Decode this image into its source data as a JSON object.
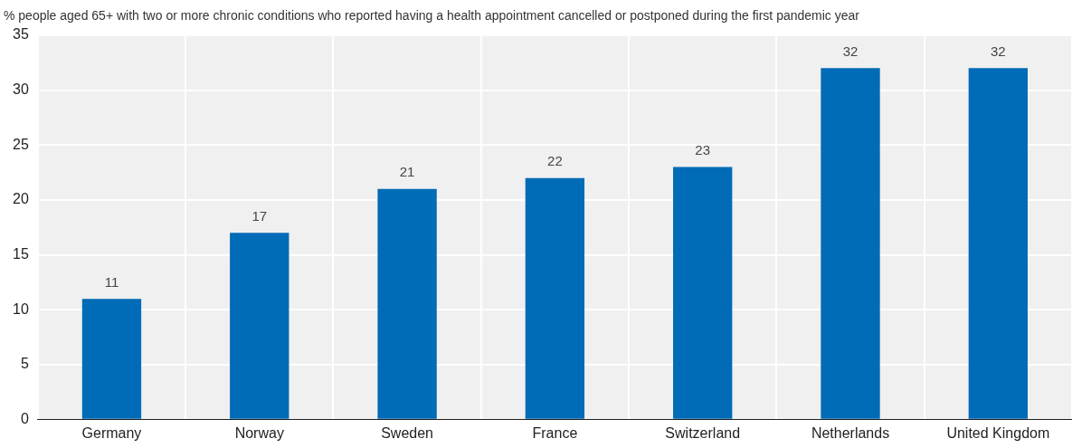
{
  "chart_data": {
    "type": "bar",
    "title": "% people aged 65+ with two or more chronic conditions who reported having a health appointment cancelled or postponed during the first pandemic year",
    "categories": [
      "Germany",
      "Norway",
      "Sweden",
      "France",
      "Switzerland",
      "Netherlands",
      "United Kingdom"
    ],
    "values": [
      11,
      17,
      21,
      22,
      23,
      32,
      32
    ],
    "color": "#006bb6",
    "ylim": [
      0,
      35
    ],
    "yticks": [
      0,
      5,
      10,
      15,
      20,
      25,
      30,
      35
    ],
    "grid": true,
    "data_labels": true
  }
}
